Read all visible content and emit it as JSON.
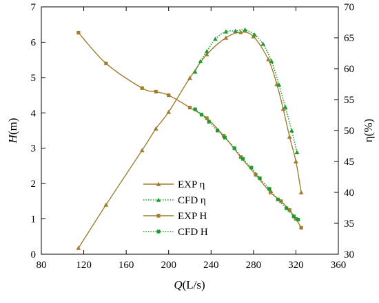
{
  "chart_data": {
    "type": "line",
    "x_axis": {
      "label_var": "Q",
      "label_unit": "(L/s)",
      "range": [
        80,
        360
      ],
      "ticks": [
        80,
        120,
        160,
        200,
        240,
        280,
        320,
        360
      ]
    },
    "y_left": {
      "label_var": "H",
      "label_unit": "(m)",
      "range": [
        0,
        7
      ],
      "ticks": [
        0,
        1,
        2,
        3,
        4,
        5,
        6,
        7
      ]
    },
    "y_right": {
      "label": "η(%)",
      "range": [
        30,
        70
      ],
      "ticks": [
        30,
        35,
        40,
        45,
        50,
        55,
        60,
        65,
        70
      ]
    },
    "grid": false,
    "legend_position": "lower-center",
    "series": [
      {
        "name": "EXP η",
        "axis": "right",
        "line_style": "solid",
        "marker": "triangle",
        "color": "#a07d2f",
        "x": [
          115,
          141,
          175,
          188,
          200,
          220,
          236,
          254,
          268,
          280,
          294,
          302,
          308,
          314,
          320,
          325
        ],
        "y": [
          31,
          38,
          46.8,
          50.3,
          53,
          58.5,
          62.3,
          65,
          65.9,
          65.2,
          61.5,
          57.5,
          53.5,
          49,
          45,
          40
        ]
      },
      {
        "name": "CFD η",
        "axis": "right",
        "line_style": "dotted",
        "marker": "triangle",
        "color": "#1e9b2e",
        "x": [
          225,
          230,
          236,
          244,
          254,
          263,
          272,
          281,
          289,
          297,
          304,
          310,
          316,
          321
        ],
        "y": [
          59.5,
          61.2,
          62.8,
          64.8,
          66,
          66.1,
          66.3,
          65.5,
          64,
          61.2,
          57.4,
          53.8,
          50,
          46.5
        ]
      },
      {
        "name": "EXP H",
        "axis": "left",
        "line_style": "solid",
        "marker": "square",
        "color": "#a07d2f",
        "x": [
          115,
          141,
          175,
          188,
          200,
          220,
          236,
          252,
          268,
          282,
          296,
          306,
          314,
          320,
          325
        ],
        "y": [
          6.27,
          5.4,
          4.7,
          4.6,
          4.5,
          4.15,
          3.85,
          3.35,
          2.75,
          2.25,
          1.75,
          1.5,
          1.25,
          1.0,
          0.75
        ]
      },
      {
        "name": "CFD H",
        "axis": "left",
        "line_style": "dotted",
        "marker": "square",
        "color": "#1e9b2e",
        "x": [
          225,
          231,
          238,
          246,
          253,
          262,
          270,
          278,
          286,
          295,
          303,
          311,
          318,
          322
        ],
        "y": [
          4.1,
          3.95,
          3.75,
          3.5,
          3.3,
          3.0,
          2.7,
          2.45,
          2.15,
          1.85,
          1.55,
          1.3,
          1.07,
          0.98
        ]
      }
    ]
  }
}
